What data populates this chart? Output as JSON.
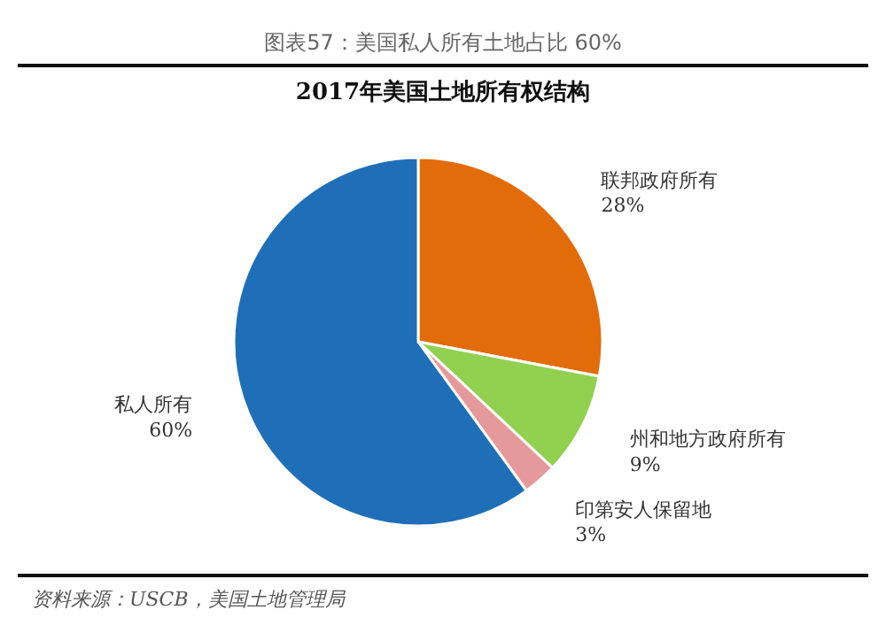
{
  "chart_data": {
    "type": "pie",
    "title": "2017年美国土地所有权结构",
    "categories": [
      "联邦政府所有",
      "州和地方政府所有",
      "印第安人保留地",
      "私人所有"
    ],
    "values": [
      28,
      9,
      3,
      60
    ],
    "colors": [
      "#e36c0a",
      "#92d050",
      "#e6999a",
      "#1f6fb8"
    ],
    "value_labels": [
      "28%",
      "9%",
      "3%",
      "60%"
    ],
    "annotations": [
      "图表57：美国私人所有土地占比 60%",
      "资料来源：USCB，美国土地管理局"
    ]
  }
}
